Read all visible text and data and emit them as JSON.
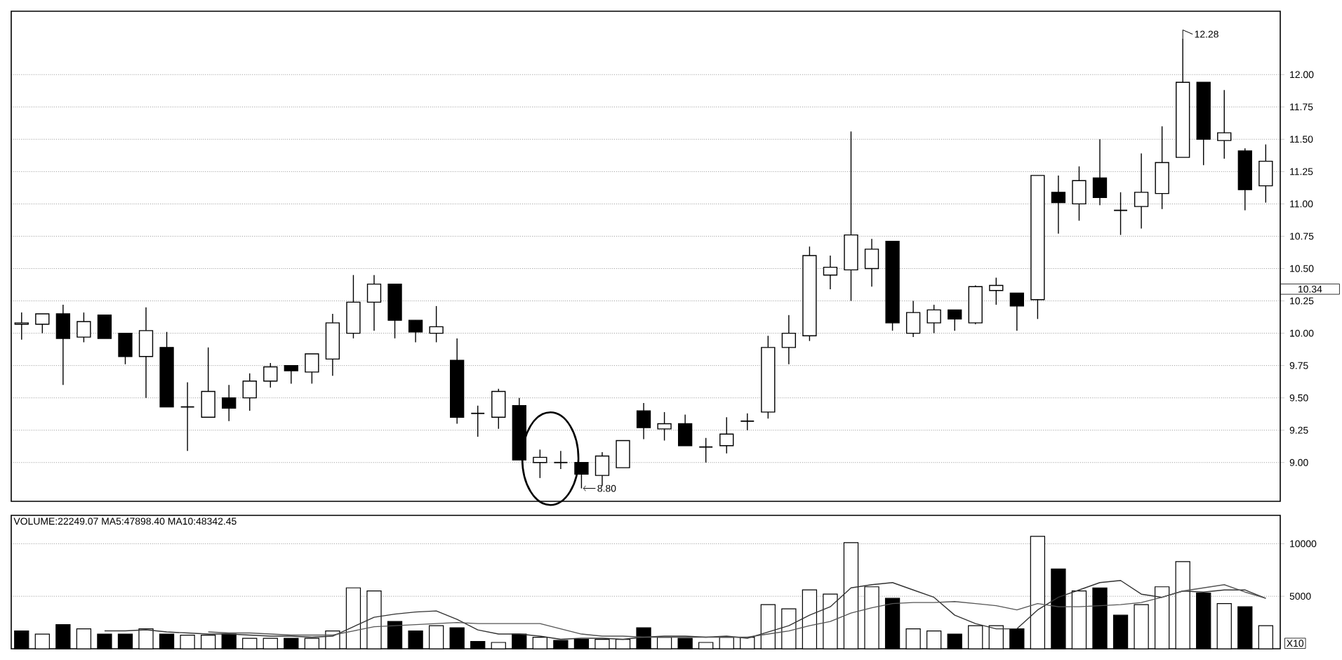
{
  "chart_data": [
    {
      "type": "candlestick",
      "categories": [
        null,
        null,
        null,
        null,
        null,
        null,
        null,
        null,
        null,
        null,
        null,
        null,
        null,
        null,
        null,
        null,
        null,
        null,
        null,
        null,
        null,
        null,
        null,
        null,
        null,
        null,
        null,
        null,
        null,
        null,
        null,
        null,
        null,
        null,
        null,
        null,
        null,
        null,
        null,
        null,
        null,
        null,
        null,
        null,
        null,
        null,
        null,
        null,
        null,
        null,
        null,
        null,
        null,
        null,
        null,
        null,
        null,
        null,
        null,
        null,
        null
      ],
      "ohlc": [
        [
          10.07,
          10.16,
          9.95,
          10.08
        ],
        [
          10.07,
          10.15,
          10.0,
          10.15
        ],
        [
          10.15,
          10.22,
          9.6,
          9.96
        ],
        [
          9.97,
          10.16,
          9.93,
          10.09
        ],
        [
          10.14,
          10.14,
          9.96,
          9.96
        ],
        [
          10.0,
          10.0,
          9.76,
          9.82
        ],
        [
          9.82,
          10.2,
          9.5,
          10.02
        ],
        [
          9.89,
          10.01,
          9.43,
          9.43
        ],
        [
          9.43,
          9.62,
          9.09,
          9.43
        ],
        [
          9.35,
          9.89,
          9.35,
          9.55
        ],
        [
          9.5,
          9.6,
          9.32,
          9.42
        ],
        [
          9.5,
          9.69,
          9.4,
          9.63
        ],
        [
          9.63,
          9.77,
          9.58,
          9.74
        ],
        [
          9.75,
          9.75,
          9.61,
          9.71
        ],
        [
          9.7,
          9.84,
          9.61,
          9.84
        ],
        [
          9.8,
          10.15,
          9.67,
          10.08
        ],
        [
          10.0,
          10.45,
          9.96,
          10.24
        ],
        [
          10.24,
          10.45,
          10.02,
          10.38
        ],
        [
          10.38,
          10.38,
          9.96,
          10.1
        ],
        [
          10.1,
          10.1,
          9.93,
          10.01
        ],
        [
          10.0,
          10.21,
          9.93,
          10.05
        ],
        [
          9.79,
          9.96,
          9.3,
          9.35
        ],
        [
          9.38,
          9.44,
          9.2,
          9.38
        ],
        [
          9.35,
          9.57,
          9.26,
          9.55
        ],
        [
          9.44,
          9.5,
          9.02,
          9.02
        ],
        [
          9.0,
          9.1,
          8.88,
          9.04
        ],
        [
          9.0,
          9.09,
          8.95,
          9.0
        ],
        [
          9.0,
          9.0,
          8.8,
          8.91
        ],
        [
          8.9,
          9.08,
          8.82,
          9.05
        ],
        [
          8.96,
          9.17,
          8.96,
          9.17
        ],
        [
          9.4,
          9.46,
          9.18,
          9.27
        ],
        [
          9.26,
          9.39,
          9.17,
          9.3
        ],
        [
          9.3,
          9.37,
          9.13,
          9.13
        ],
        [
          9.12,
          9.19,
          9.0,
          9.12
        ],
        [
          9.13,
          9.35,
          9.07,
          9.22
        ],
        [
          9.32,
          9.38,
          9.25,
          9.32
        ],
        [
          9.39,
          9.98,
          9.34,
          9.89
        ],
        [
          9.89,
          10.14,
          9.76,
          10.0
        ],
        [
          9.98,
          10.67,
          9.94,
          10.6
        ],
        [
          10.45,
          10.6,
          10.34,
          10.51
        ],
        [
          10.49,
          11.56,
          10.25,
          10.76
        ],
        [
          10.5,
          10.73,
          10.36,
          10.65
        ],
        [
          10.71,
          10.71,
          10.02,
          10.08
        ],
        [
          10.0,
          10.25,
          9.97,
          10.16
        ],
        [
          10.08,
          10.22,
          10.0,
          10.18
        ],
        [
          10.18,
          10.18,
          10.02,
          10.11
        ],
        [
          10.08,
          10.37,
          10.07,
          10.36
        ],
        [
          10.33,
          10.43,
          10.22,
          10.37
        ],
        [
          10.31,
          10.31,
          10.02,
          10.21
        ],
        [
          10.26,
          11.22,
          10.11,
          11.22
        ],
        [
          11.09,
          11.22,
          10.77,
          11.01
        ],
        [
          11.0,
          11.29,
          10.87,
          11.18
        ],
        [
          11.2,
          11.5,
          10.99,
          11.05
        ],
        [
          10.95,
          11.09,
          10.76,
          10.95
        ],
        [
          10.98,
          11.39,
          10.81,
          11.09
        ],
        [
          11.08,
          11.6,
          10.96,
          11.32
        ],
        [
          11.36,
          12.28,
          11.36,
          11.94
        ],
        [
          11.94,
          11.94,
          11.3,
          11.5
        ],
        [
          11.49,
          11.88,
          11.35,
          11.55
        ],
        [
          11.41,
          11.43,
          10.95,
          11.11
        ],
        [
          11.14,
          11.46,
          11.01,
          11.33
        ]
      ],
      "ylim": [
        8.7,
        12.49
      ],
      "yticks": [
        {
          "value": 9.0,
          "label": "9.00"
        },
        {
          "value": 9.25,
          "label": "9.25"
        },
        {
          "value": 9.5,
          "label": "9.50"
        },
        {
          "value": 9.75,
          "label": "9.75"
        },
        {
          "value": 10.0,
          "label": "10.00"
        },
        {
          "value": 10.25,
          "label": "10.25"
        },
        {
          "value": 10.5,
          "label": "10.50"
        },
        {
          "value": 10.75,
          "label": "10.75"
        },
        {
          "value": 11.0,
          "label": "11.00"
        },
        {
          "value": 11.25,
          "label": "11.25"
        },
        {
          "value": 11.5,
          "label": "11.50"
        },
        {
          "value": 11.75,
          "label": "11.75"
        },
        {
          "value": 12.0,
          "label": "12.00"
        }
      ],
      "grid": "y",
      "tick_labels": "y",
      "annotations": [
        "12.28",
        "8.80",
        "10.34"
      ]
    },
    {
      "type": "bar",
      "categories": [
        null,
        null,
        null,
        null,
        null,
        null,
        null,
        null,
        null,
        null,
        null,
        null,
        null,
        null,
        null,
        null,
        null,
        null,
        null,
        null,
        null,
        null,
        null,
        null,
        null,
        null,
        null,
        null,
        null,
        null,
        null,
        null,
        null,
        null,
        null,
        null,
        null,
        null,
        null,
        null,
        null,
        null,
        null,
        null,
        null,
        null,
        null,
        null,
        null,
        null,
        null,
        null,
        null,
        null,
        null,
        null,
        null,
        null,
        null,
        null,
        null
      ],
      "series": [
        {
          "type": "bar",
          "colors": [
            "#000000",
            "#ffffff",
            "#000000",
            "#ffffff",
            "#000000",
            "#000000",
            "#ffffff",
            "#000000",
            "#ffffff",
            "#ffffff",
            "#000000",
            "#ffffff",
            "#ffffff",
            "#000000",
            "#ffffff",
            "#ffffff",
            "#ffffff",
            "#ffffff",
            "#000000",
            "#000000",
            "#ffffff",
            "#000000",
            "#000000",
            "#ffffff",
            "#000000",
            "#ffffff",
            "#000000",
            "#000000",
            "#ffffff",
            "#ffffff",
            "#000000",
            "#ffffff",
            "#000000",
            "#ffffff",
            "#ffffff",
            "#ffffff",
            "#ffffff",
            "#ffffff",
            "#ffffff",
            "#ffffff",
            "#ffffff",
            "#ffffff",
            "#000000",
            "#ffffff",
            "#ffffff",
            "#000000",
            "#ffffff",
            "#ffffff",
            "#000000",
            "#ffffff",
            "#000000",
            "#ffffff",
            "#000000",
            "#000000",
            "#ffffff",
            "#ffffff",
            "#ffffff",
            "#000000",
            "#ffffff",
            "#000000",
            "#ffffff"
          ],
          "values": [
            1700,
            1400,
            2300,
            1900,
            1400,
            1400,
            1900,
            1400,
            1300,
            1300,
            1400,
            1000,
            1000,
            1000,
            1000,
            1700,
            5800,
            5500,
            2600,
            1700,
            2200,
            2000,
            700,
            600,
            1400,
            1100,
            800,
            900,
            900,
            900,
            2000,
            1100,
            1000,
            600,
            1100,
            1100,
            4200,
            3800,
            5600,
            5200,
            10100,
            5900,
            4800,
            1900,
            1700,
            1400,
            2200,
            2200,
            1900,
            10700,
            7600,
            5500,
            5800,
            3200,
            4200,
            5900,
            8300,
            5300,
            4300,
            4000,
            2200
          ]
        },
        {
          "type": "line",
          "color": "#333333",
          "values": [
            null,
            null,
            null,
            null,
            1700,
            1700,
            1800,
            1600,
            1500,
            1400,
            1400,
            1300,
            1200,
            1200,
            1100,
            1200,
            2100,
            3000,
            3300,
            3500,
            3600,
            2800,
            1800,
            1400,
            1400,
            1200,
            900,
            1000,
            1000,
            900,
            1100,
            1200,
            1200,
            1100,
            1200,
            1000,
            1600,
            2200,
            3200,
            4000,
            5800,
            6100,
            6300,
            5600,
            4900,
            3200,
            2400,
            1900,
            1900,
            3700,
            4900,
            5600,
            6300,
            6500,
            5200,
            4900,
            5500,
            5400,
            5600,
            5600,
            4800
          ]
        },
        {
          "type": "line",
          "color": "#555555",
          "values": [
            null,
            null,
            null,
            null,
            null,
            null,
            null,
            null,
            null,
            1600,
            1500,
            1500,
            1400,
            1300,
            1300,
            1300,
            1700,
            2100,
            2200,
            2300,
            2400,
            2500,
            2400,
            2400,
            2400,
            2400,
            1900,
            1400,
            1200,
            1200,
            1100,
            1100,
            1100,
            1100,
            1100,
            1100,
            1400,
            1700,
            2200,
            2600,
            3400,
            3900,
            4300,
            4400,
            4400,
            4500,
            4300,
            4100,
            3700,
            4300,
            4000,
            4000,
            4100,
            4200,
            4400,
            4900,
            5500,
            5800,
            6100,
            5400,
            4800
          ]
        }
      ],
      "ylim": [
        0,
        12700
      ],
      "yticks": [
        5000,
        10000
      ],
      "grid": "y",
      "tick_labels": "y",
      "annotations": [
        "VOLUME:22249.07  MA5:47898.40  MA10:48342.45",
        "X10"
      ]
    }
  ]
}
